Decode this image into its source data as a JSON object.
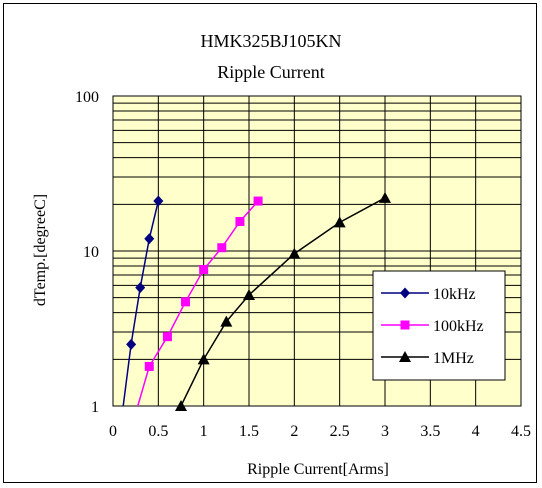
{
  "chart_data": {
    "type": "line",
    "title": "HMK325BJ105KN",
    "subtitle": "Ripple Current",
    "xlabel": "Ripple Current[Arms]",
    "ylabel": "dTemp.[degreeC]",
    "xlim": [
      0,
      4.5
    ],
    "ylim": [
      1,
      100
    ],
    "yscale": "log",
    "xticks": [
      "0",
      "0.5",
      "1",
      "1.5",
      "2",
      "2.5",
      "3",
      "3.5",
      "4",
      "4.5"
    ],
    "yticks": [
      "1",
      "10",
      "100"
    ],
    "grid": true,
    "plot_background": "#ffffcc",
    "legend_position": "right",
    "series": [
      {
        "name": "10kHz",
        "color": "#000080",
        "marker": "diamond",
        "x": [
          0.1,
          0.2,
          0.3,
          0.4,
          0.5
        ],
        "y": [
          0.88,
          2.5,
          5.8,
          12,
          21
        ]
      },
      {
        "name": "100kHz",
        "color": "#ff00ff",
        "marker": "square",
        "x": [
          0.25,
          0.4,
          0.6,
          0.8,
          1.0,
          1.2,
          1.4,
          1.6
        ],
        "y": [
          0.9,
          1.8,
          2.8,
          4.7,
          7.6,
          10.5,
          15.5,
          21
        ]
      },
      {
        "name": "1MHz",
        "color": "#000000",
        "marker": "triangle",
        "x": [
          0.75,
          1.0,
          1.25,
          1.5,
          2.0,
          2.5,
          3.0
        ],
        "y": [
          1.0,
          2.0,
          3.5,
          5.2,
          9.6,
          15.3,
          22
        ]
      }
    ]
  }
}
